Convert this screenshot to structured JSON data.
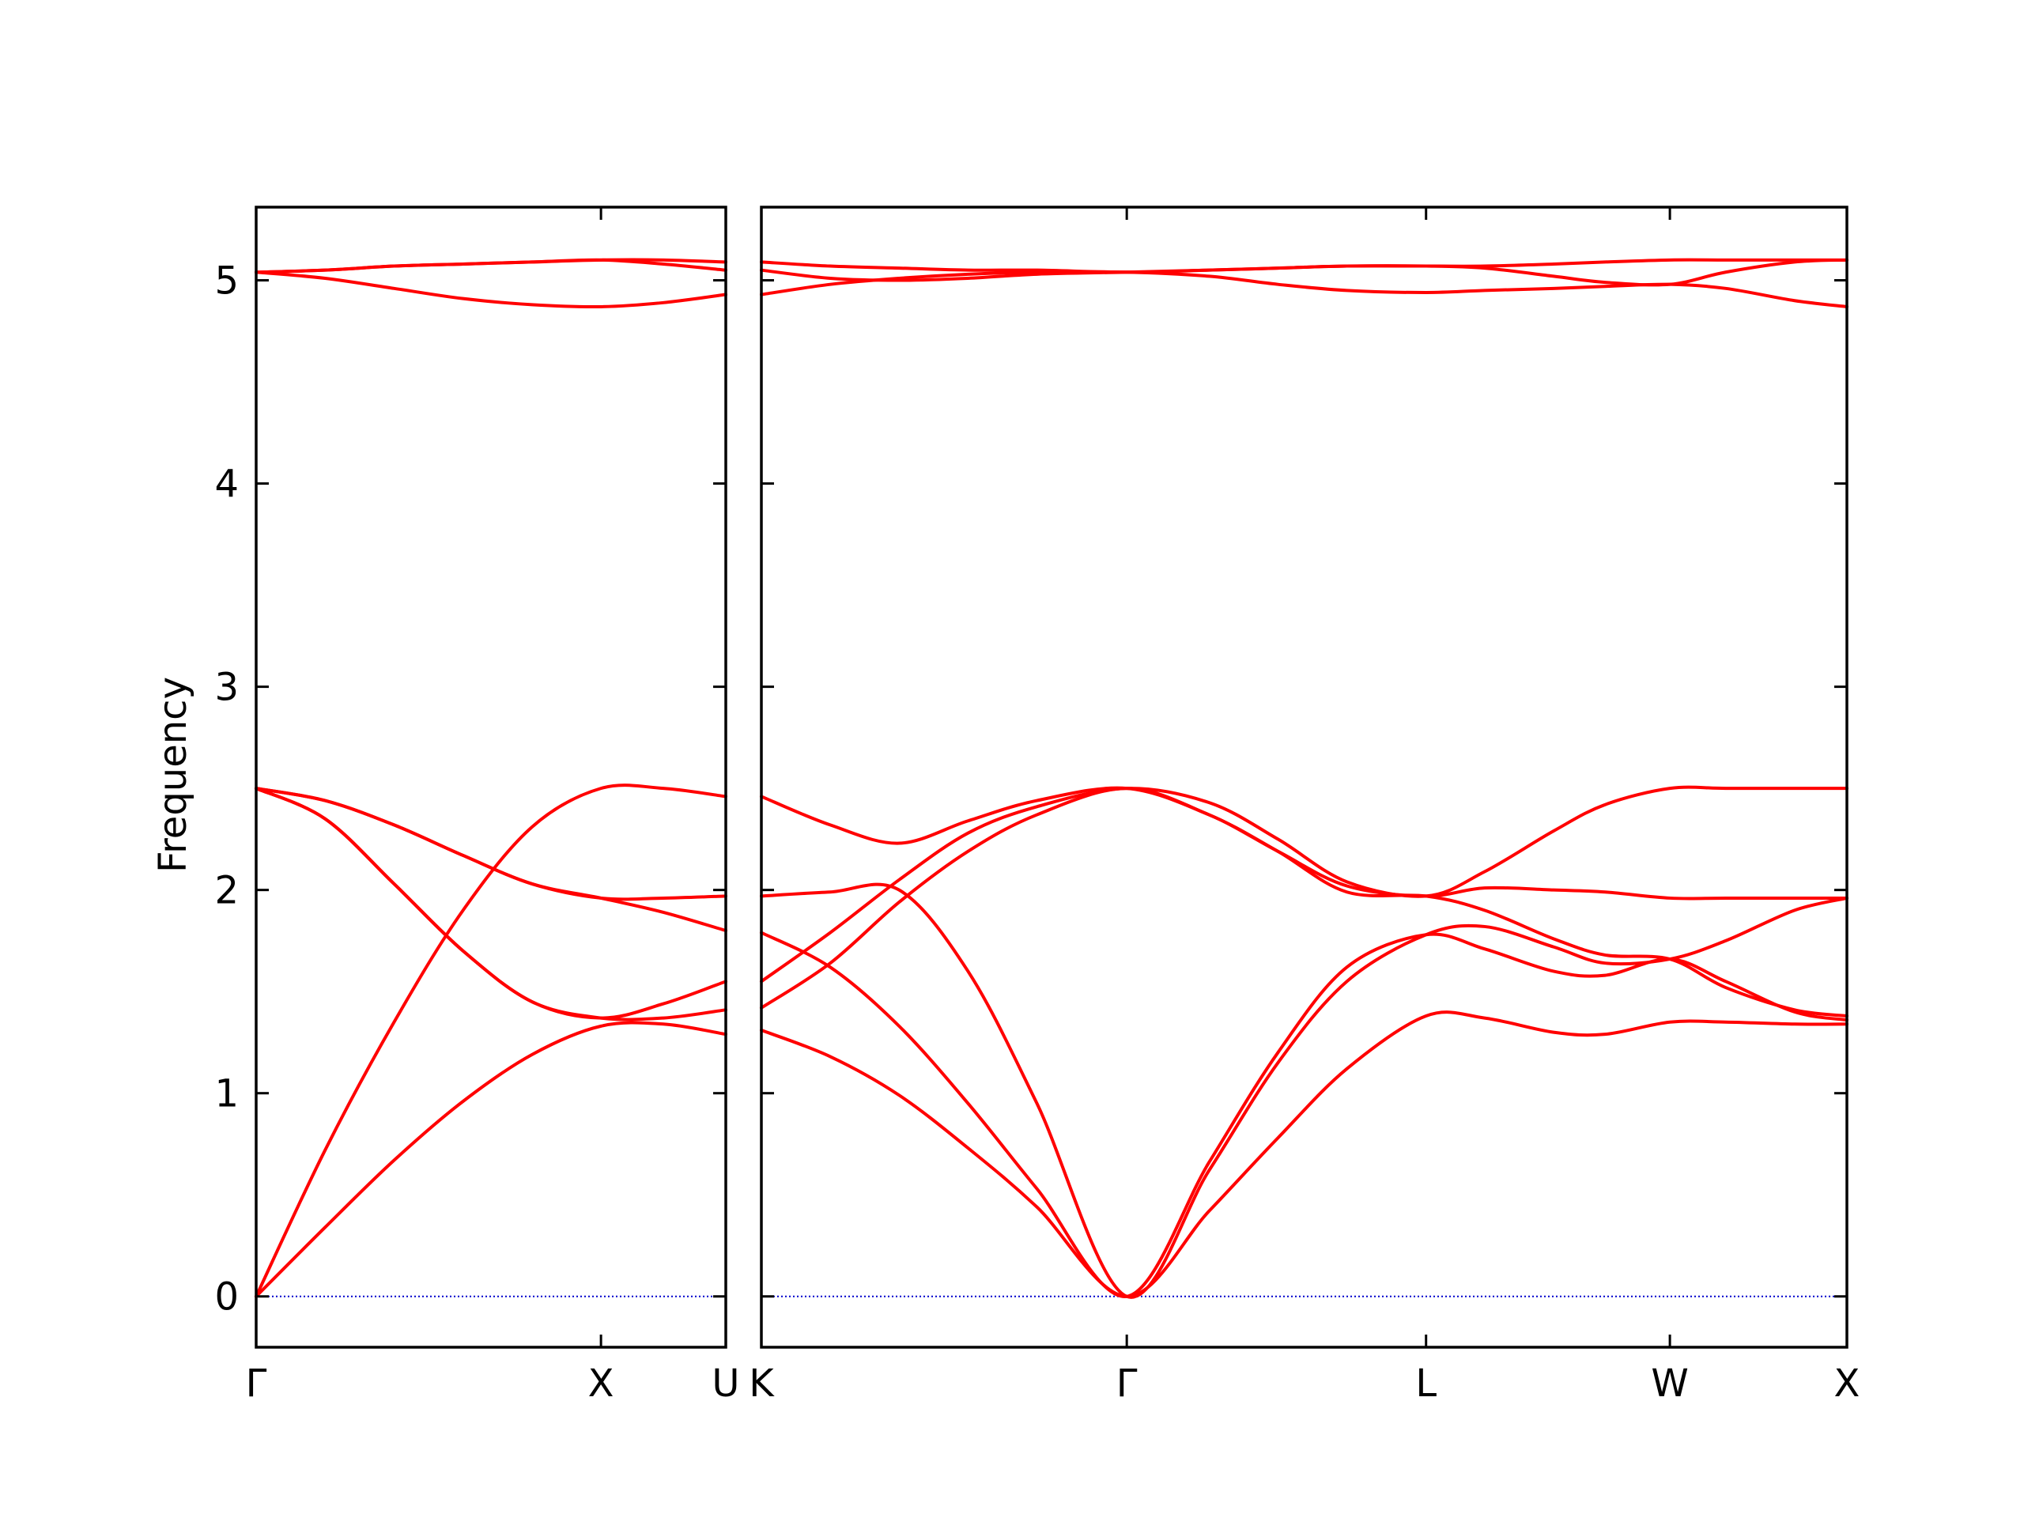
{
  "chart_data": {
    "type": "line",
    "title": "",
    "ylabel": "Frequency",
    "xlabel": "",
    "ylim": [
      -0.25,
      5.36
    ],
    "y_ticks": [
      0,
      1,
      2,
      3,
      4,
      5
    ],
    "y_tick_labels": [
      "0",
      "1",
      "2",
      "3",
      "4",
      "5"
    ],
    "grid": false,
    "legend": "none",
    "colors": {
      "bands": "#ff0000",
      "zero_line": "#0000cc",
      "axes": "#000000"
    },
    "panels": [
      {
        "name": "left",
        "xlim": [
          0,
          1.362
        ],
        "x_ticks": [
          0,
          1,
          1.362
        ],
        "x_tick_labels": [
          "Γ",
          "X",
          "U"
        ],
        "bands": [
          {
            "x": [
              0,
              0.2,
              0.4,
              0.6,
              0.8,
              1.0,
              1.181,
              1.362
            ],
            "y": [
              0,
              0.34,
              0.67,
              0.96,
              1.19,
              1.33,
              1.34,
              1.29
            ]
          },
          {
            "x": [
              0,
              0.2,
              0.4,
              0.6,
              0.8,
              1.0,
              1.181,
              1.362
            ],
            "y": [
              0,
              0.72,
              1.35,
              1.9,
              2.31,
              2.5,
              2.5,
              2.46
            ]
          },
          {
            "x": [
              0,
              0.2,
              0.4,
              0.6,
              0.8,
              1.0,
              1.181,
              1.362
            ],
            "y": [
              2.5,
              2.35,
              2.03,
              1.7,
              1.45,
              1.37,
              1.37,
              1.41
            ]
          },
          {
            "x": [
              0,
              0.2,
              0.4,
              0.6,
              0.8,
              1.0,
              1.181,
              1.362
            ],
            "y": [
              2.5,
              2.44,
              2.32,
              2.17,
              2.03,
              1.96,
              1.96,
              1.97
            ]
          },
          {
            "x": [
              0,
              0.2,
              0.4,
              0.6,
              0.8,
              1.0,
              1.181,
              1.362
            ],
            "y": [
              2.5,
              2.44,
              2.32,
              2.17,
              2.03,
              1.96,
              1.89,
              1.8
            ]
          },
          {
            "x": [
              0,
              0.2,
              0.4,
              0.6,
              0.8,
              1.0,
              1.181,
              1.362
            ],
            "y": [
              2.5,
              2.35,
              2.03,
              1.7,
              1.45,
              1.37,
              1.44,
              1.55
            ]
          },
          {
            "x": [
              0,
              0.2,
              0.4,
              0.6,
              0.8,
              1.0,
              1.181,
              1.362
            ],
            "y": [
              5.04,
              5.01,
              4.96,
              4.91,
              4.88,
              4.87,
              4.89,
              4.93
            ]
          },
          {
            "x": [
              0,
              0.2,
              0.4,
              0.6,
              0.8,
              1.0,
              1.181,
              1.362
            ],
            "y": [
              5.04,
              5.05,
              5.07,
              5.08,
              5.09,
              5.1,
              5.1,
              5.09
            ]
          },
          {
            "x": [
              0,
              0.2,
              0.4,
              0.6,
              0.8,
              1.0,
              1.181,
              1.362
            ],
            "y": [
              5.04,
              5.05,
              5.07,
              5.08,
              5.09,
              5.1,
              5.08,
              5.05
            ]
          }
        ],
        "zero_line": {
          "x": [
            0,
            1.362
          ],
          "y": [
            0,
            0
          ]
        }
      },
      {
        "name": "right",
        "xlim": [
          0,
          3.152
        ],
        "x_ticks": [
          0,
          1.061,
          1.93,
          2.638,
          3.152
        ],
        "x_tick_labels": [
          "K",
          "Γ",
          "L",
          "W",
          "X"
        ],
        "bands": [
          {
            "x": [
              0,
              0.2,
              0.4,
              0.6,
              0.8,
              1.061,
              1.3,
              1.5,
              1.7,
              1.93,
              2.1,
              2.3,
              2.45,
              2.638,
              2.8,
              3.0,
              3.152
            ],
            "y": [
              1.31,
              1.18,
              0.99,
              0.73,
              0.44,
              0,
              0.42,
              0.78,
              1.12,
              1.38,
              1.37,
              1.3,
              1.29,
              1.35,
              1.35,
              1.34,
              1.34
            ]
          },
          {
            "x": [
              0,
              0.2,
              0.4,
              0.6,
              0.8,
              1.061,
              1.3,
              1.5,
              1.7,
              1.93,
              2.1,
              2.3,
              2.45,
              2.638,
              2.8,
              3.0,
              3.152
            ],
            "y": [
              1.79,
              1.62,
              1.33,
              0.95,
              0.53,
              0,
              0.66,
              1.2,
              1.62,
              1.78,
              1.71,
              1.6,
              1.58,
              1.66,
              1.55,
              1.4,
              1.36
            ]
          },
          {
            "x": [
              0,
              0.2,
              0.4,
              0.6,
              0.8,
              1.061,
              1.3,
              1.5,
              1.7,
              1.93,
              2.1,
              2.3,
              2.45,
              2.638,
              2.8,
              3.0,
              3.152
            ],
            "y": [
              1.97,
              1.99,
              2.0,
              1.6,
              0.95,
              0,
              0.62,
              1.15,
              1.55,
              1.78,
              1.82,
              1.72,
              1.64,
              1.66,
              1.75,
              1.9,
              1.96
            ]
          },
          {
            "x": [
              0,
              0.2,
              0.4,
              0.6,
              0.8,
              1.061,
              1.3,
              1.5,
              1.7,
              1.93,
              2.1,
              2.3,
              2.45,
              2.638,
              2.8,
              3.0,
              3.152
            ],
            "y": [
              1.42,
              1.64,
              1.94,
              2.19,
              2.37,
              2.5,
              2.37,
              2.19,
              2.02,
              1.97,
              2.01,
              2.0,
              1.99,
              1.96,
              1.96,
              1.96,
              1.96
            ]
          },
          {
            "x": [
              0,
              0.2,
              0.4,
              0.6,
              0.8,
              1.061,
              1.3,
              1.5,
              1.7,
              1.93,
              2.1,
              2.3,
              2.45,
              2.638,
              2.8,
              3.0,
              3.152
            ],
            "y": [
              1.55,
              1.79,
              2.05,
              2.28,
              2.41,
              2.5,
              2.43,
              2.25,
              2.04,
              1.97,
              2.09,
              2.29,
              2.42,
              2.5,
              2.5,
              2.5,
              2.5
            ]
          },
          {
            "x": [
              0,
              0.2,
              0.4,
              0.6,
              0.8,
              1.061,
              1.3,
              1.5,
              1.7,
              1.93,
              2.1,
              2.3,
              2.45,
              2.638,
              2.8,
              3.0,
              3.152
            ],
            "y": [
              2.46,
              2.32,
              2.23,
              2.34,
              2.44,
              2.5,
              2.37,
              2.19,
              1.99,
              1.97,
              1.9,
              1.76,
              1.68,
              1.66,
              1.52,
              1.41,
              1.38
            ]
          },
          {
            "x": [
              0,
              0.2,
              0.4,
              0.6,
              0.8,
              1.061,
              1.3,
              1.5,
              1.7,
              1.93,
              2.1,
              2.3,
              2.45,
              2.638,
              2.8,
              3.0,
              3.152
            ],
            "y": [
              4.93,
              4.98,
              5.01,
              5.03,
              5.04,
              5.04,
              5.02,
              4.98,
              4.95,
              4.94,
              4.95,
              4.96,
              4.97,
              4.98,
              4.96,
              4.9,
              4.87
            ]
          },
          {
            "x": [
              0,
              0.2,
              0.4,
              0.6,
              0.8,
              1.061,
              1.3,
              1.5,
              1.7,
              1.93,
              2.1,
              2.3,
              2.45,
              2.638,
              2.8,
              3.0,
              3.152
            ],
            "y": [
              5.05,
              5.01,
              5.0,
              5.01,
              5.03,
              5.04,
              5.05,
              5.06,
              5.07,
              5.07,
              5.07,
              5.08,
              5.09,
              5.1,
              5.1,
              5.1,
              5.1
            ]
          },
          {
            "x": [
              0,
              0.2,
              0.4,
              0.6,
              0.8,
              1.061,
              1.3,
              1.5,
              1.7,
              1.93,
              2.1,
              2.3,
              2.45,
              2.638,
              2.8,
              3.0,
              3.152
            ],
            "y": [
              5.09,
              5.07,
              5.06,
              5.05,
              5.05,
              5.04,
              5.05,
              5.06,
              5.07,
              5.07,
              5.06,
              5.02,
              4.99,
              4.98,
              5.04,
              5.09,
              5.1
            ]
          }
        ],
        "zero_line": {
          "x": [
            0,
            3.152
          ],
          "y": [
            0,
            0
          ]
        }
      }
    ]
  }
}
